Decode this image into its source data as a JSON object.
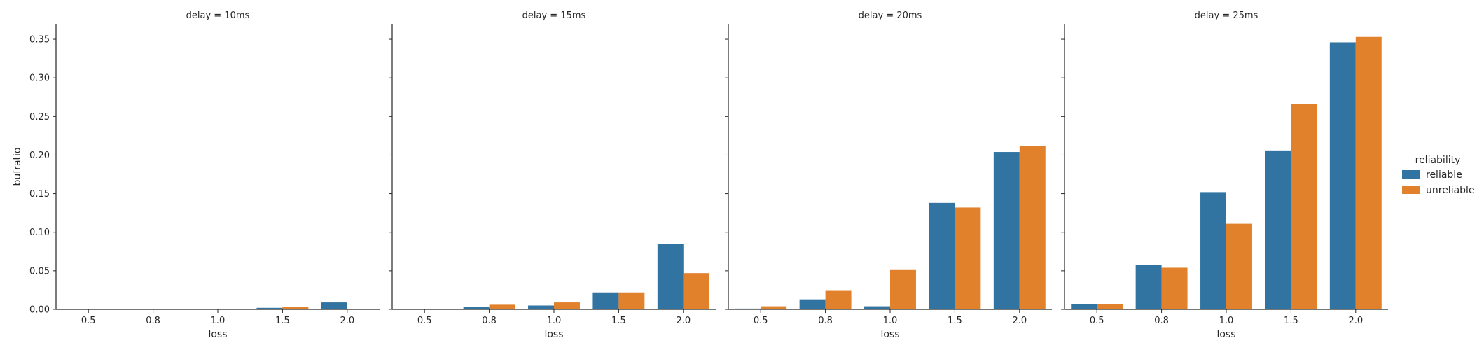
{
  "chart_data": {
    "type": "bar",
    "categories": [
      "0.5",
      "0.8",
      "1.0",
      "1.5",
      "2.0"
    ],
    "xlabel": "loss",
    "ylabel": "bufratio",
    "ylim": [
      0,
      0.37
    ],
    "yticks": [
      "0.00",
      "0.05",
      "0.10",
      "0.15",
      "0.20",
      "0.25",
      "0.30",
      "0.35"
    ],
    "legend": {
      "title": "reliability",
      "placement": "right",
      "entries": [
        {
          "name": "reliable",
          "color": "#3274a1"
        },
        {
          "name": "unreliable",
          "color": "#e1812c"
        }
      ]
    },
    "panels": [
      {
        "title": "delay = 10ms",
        "series": [
          {
            "name": "reliable",
            "values": [
              0,
              0,
              0,
              0.002,
              0.009
            ]
          },
          {
            "name": "unreliable",
            "values": [
              0,
              0,
              0,
              0.003,
              0
            ]
          }
        ]
      },
      {
        "title": "delay = 15ms",
        "series": [
          {
            "name": "reliable",
            "values": [
              0,
              0.003,
              0.005,
              0.022,
              0.085
            ]
          },
          {
            "name": "unreliable",
            "values": [
              0,
              0.006,
              0.009,
              0.022,
              0.047
            ]
          }
        ]
      },
      {
        "title": "delay = 20ms",
        "series": [
          {
            "name": "reliable",
            "values": [
              0.001,
              0.013,
              0.004,
              0.138,
              0.204
            ]
          },
          {
            "name": "unreliable",
            "values": [
              0.004,
              0.024,
              0.051,
              0.132,
              0.212
            ]
          }
        ]
      },
      {
        "title": "delay = 25ms",
        "series": [
          {
            "name": "reliable",
            "values": [
              0.007,
              0.058,
              0.152,
              0.206,
              0.346
            ]
          },
          {
            "name": "unreliable",
            "values": [
              0.007,
              0.054,
              0.111,
              0.266,
              0.353
            ]
          }
        ]
      }
    ]
  }
}
